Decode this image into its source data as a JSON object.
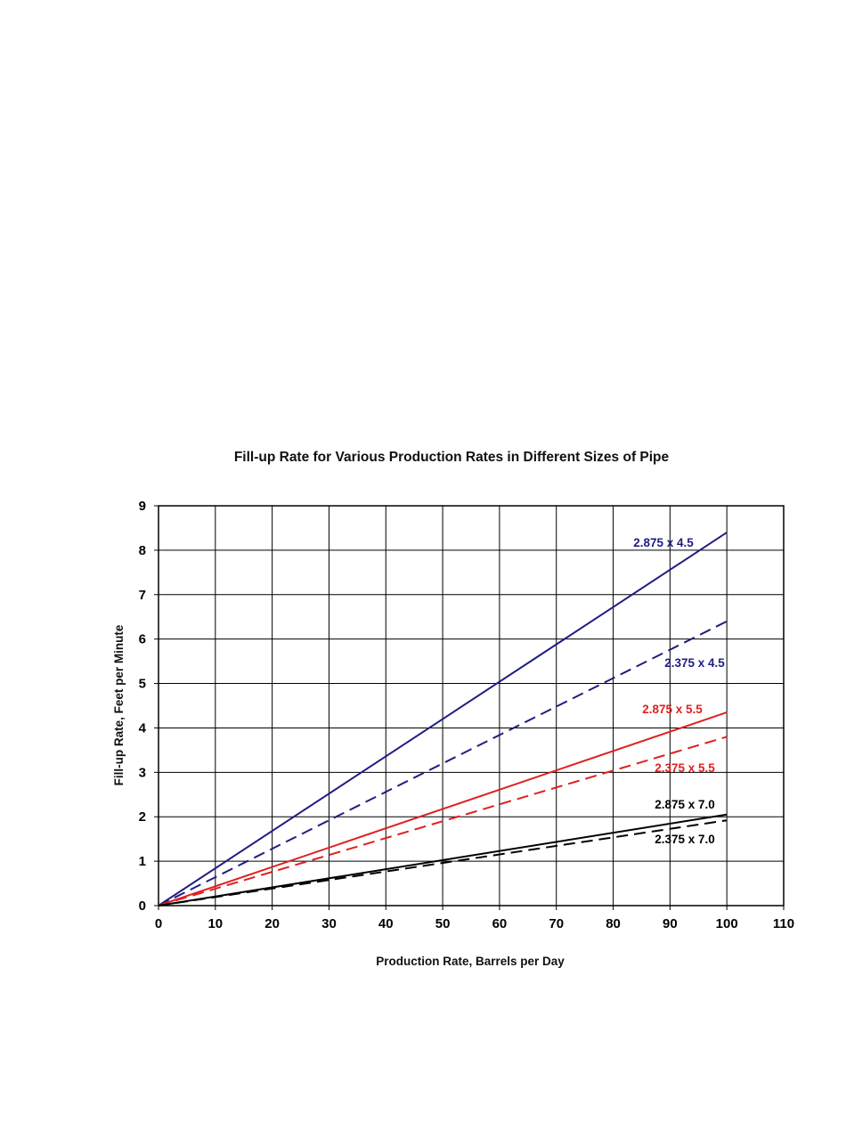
{
  "chart_data": {
    "type": "line",
    "title": "Fill-up Rate for Various Production Rates in Different Sizes of Pipe",
    "xlabel": "Production Rate, Barrels per Day",
    "ylabel": "Fill-up Rate, Feet per Minute",
    "xlim": [
      0,
      110
    ],
    "ylim": [
      0,
      9
    ],
    "xticks": [
      "0",
      "10",
      "20",
      "30",
      "40",
      "50",
      "60",
      "70",
      "80",
      "90",
      "100",
      "110"
    ],
    "yticks": [
      "0",
      "1",
      "2",
      "3",
      "4",
      "5",
      "6",
      "7",
      "8",
      "9"
    ],
    "grid": true,
    "legend": "inline labels",
    "series": [
      {
        "name": "2.875 x 4.5",
        "color": "#1e1e82",
        "dash": "solid",
        "x": [
          0,
          100
        ],
        "y": [
          0,
          8.4
        ]
      },
      {
        "name": "2.375 x 4.5",
        "color": "#1e1e82",
        "dash": "dashed",
        "x": [
          0,
          100
        ],
        "y": [
          0,
          6.4
        ]
      },
      {
        "name": "2.875 x 5.5",
        "color": "#e02020",
        "dash": "solid",
        "x": [
          0,
          100
        ],
        "y": [
          0,
          4.35
        ]
      },
      {
        "name": "2.375 x 5.5",
        "color": "#e02020",
        "dash": "dashed",
        "x": [
          0,
          100
        ],
        "y": [
          0,
          3.8
        ]
      },
      {
        "name": "2.875 x 7.0",
        "color": "#000000",
        "dash": "solid",
        "x": [
          0,
          100
        ],
        "y": [
          0,
          2.05
        ]
      },
      {
        "name": "2.375 x 7.0",
        "color": "#000000",
        "dash": "dashed",
        "x": [
          0,
          100
        ],
        "y": [
          0,
          1.92
        ]
      }
    ]
  }
}
